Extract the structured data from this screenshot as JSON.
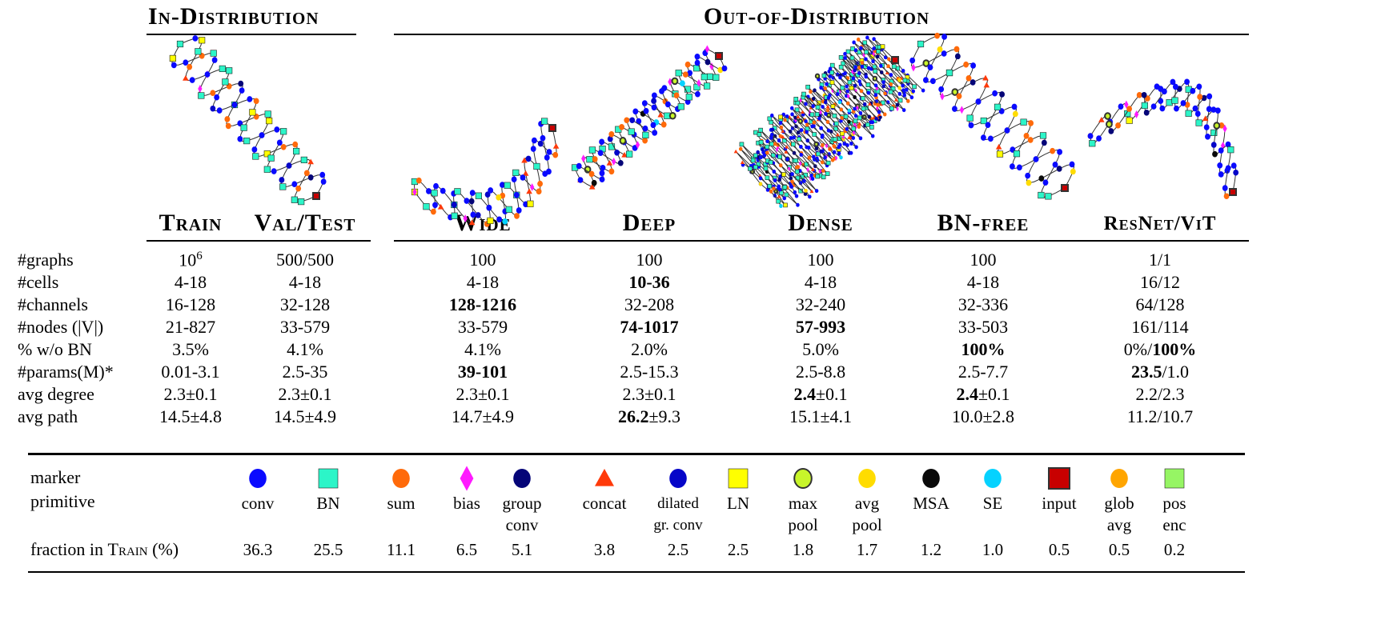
{
  "groups": {
    "in": "In-Distribution",
    "out": "Out-of-Distribution"
  },
  "columns": [
    "Train",
    "Val/Test",
    "Wide",
    "Deep",
    "Dense",
    "BN-free",
    "ResNet/ViT"
  ],
  "rows": [
    {
      "label": "#graphs",
      "cells": [
        {
          "t": "10",
          "sup": "6"
        },
        {
          "t": "500/500"
        },
        {
          "t": "100"
        },
        {
          "t": "100"
        },
        {
          "t": "100"
        },
        {
          "t": "100"
        },
        {
          "t": "1/1"
        }
      ]
    },
    {
      "label": "#cells",
      "cells": [
        {
          "t": "4-18"
        },
        {
          "t": "4-18"
        },
        {
          "t": "4-18"
        },
        {
          "t": "10-36",
          "b": true
        },
        {
          "t": "4-18"
        },
        {
          "t": "4-18"
        },
        {
          "t": "16/12"
        }
      ]
    },
    {
      "label": "#channels",
      "cells": [
        {
          "t": "16-128"
        },
        {
          "t": "32-128"
        },
        {
          "t": "128-1216",
          "b": true
        },
        {
          "t": "32-208"
        },
        {
          "t": "32-240"
        },
        {
          "t": "32-336"
        },
        {
          "t": "64/128"
        }
      ]
    },
    {
      "label": "#nodes (|V|)",
      "cells": [
        {
          "t": "21-827"
        },
        {
          "t": "33-579"
        },
        {
          "t": "33-579"
        },
        {
          "t": "74-1017",
          "b": true
        },
        {
          "t": "57-993",
          "b": true
        },
        {
          "t": "33-503"
        },
        {
          "t": "161/114"
        }
      ]
    },
    {
      "label": "% w/o BN",
      "cells": [
        {
          "t": "3.5%"
        },
        {
          "t": "4.1%"
        },
        {
          "t": "4.1%"
        },
        {
          "t": "2.0%"
        },
        {
          "t": "5.0%"
        },
        {
          "t": "100%",
          "b": true
        },
        {
          "t": "0%/",
          "bt": "100%"
        }
      ]
    },
    {
      "label": "#params(M)*",
      "cells": [
        {
          "t": "0.01-3.1"
        },
        {
          "t": "2.5-35"
        },
        {
          "t": "39-101",
          "b": true
        },
        {
          "t": "2.5-15.3"
        },
        {
          "t": "2.5-8.8"
        },
        {
          "t": "2.5-7.7"
        },
        {
          "bp": "23.5",
          "t": "/1.0"
        }
      ]
    },
    {
      "label": "avg degree",
      "cells": [
        {
          "t": "2.3±0.1"
        },
        {
          "t": "2.3±0.1"
        },
        {
          "t": "2.3±0.1"
        },
        {
          "t": "2.3±0.1"
        },
        {
          "bp": "2.4",
          "t": "±0.1"
        },
        {
          "bp": "2.4",
          "t": "±0.1"
        },
        {
          "t": "2.2/2.3"
        }
      ]
    },
    {
      "label": "avg path",
      "cells": [
        {
          "t": "14.5±4.8"
        },
        {
          "t": "14.5±4.9"
        },
        {
          "t": "14.7±4.9"
        },
        {
          "bp": "26.2",
          "t": "±9.3"
        },
        {
          "t": "15.1±4.1"
        },
        {
          "t": "10.0±2.8"
        },
        {
          "t": "11.2/10.7"
        }
      ]
    }
  ],
  "legend": {
    "marker_label": "marker",
    "primitive_label": "primitive",
    "fraction_label": "fraction in ",
    "fraction_sc": "Train",
    "fraction_unit": " (%)",
    "items": [
      {
        "name": "conv",
        "l2": "",
        "shape": "circle",
        "color": "#0a0aff",
        "frac": "36.3"
      },
      {
        "name": "BN",
        "l2": "",
        "shape": "square",
        "color": "#2cf5c8",
        "frac": "25.5"
      },
      {
        "name": "sum",
        "l2": "",
        "shape": "circle",
        "color": "#ff6a0a",
        "frac": "11.1"
      },
      {
        "name": "bias",
        "l2": "",
        "shape": "diamond",
        "color": "#ff1aff",
        "frac": "6.5"
      },
      {
        "name": "group",
        "l2": "conv",
        "shape": "circle",
        "color": "#050578",
        "frac": "5.1"
      },
      {
        "name": "concat",
        "l2": "",
        "shape": "triangle",
        "color": "#ff3a0a",
        "frac": "3.8"
      },
      {
        "name": "dilated",
        "l2": "gr. conv",
        "shape": "circle",
        "color": "#0505c8",
        "frac": "2.5"
      },
      {
        "name": "LN",
        "l2": "",
        "shape": "square",
        "color": "#ffff00",
        "frac": "2.5"
      },
      {
        "name": "max",
        "l2": "pool",
        "shape": "circle-outline",
        "color": "#c8f52a",
        "frac": "1.8"
      },
      {
        "name": "avg",
        "l2": "pool",
        "shape": "circle",
        "color": "#ffdc00",
        "frac": "1.7"
      },
      {
        "name": "MSA",
        "l2": "",
        "shape": "circle",
        "color": "#0a0a0a",
        "frac": "1.2"
      },
      {
        "name": "SE",
        "l2": "",
        "shape": "circle",
        "color": "#05d2ff",
        "frac": "1.0"
      },
      {
        "name": "input",
        "l2": "",
        "shape": "square-outline",
        "color": "#c80000",
        "frac": "0.5"
      },
      {
        "name": "glob",
        "l2": "avg",
        "shape": "circle",
        "color": "#ffa500",
        "frac": "0.5"
      },
      {
        "name": "pos",
        "l2": "enc",
        "shape": "square",
        "color": "#96f564",
        "frac": "0.2"
      }
    ]
  }
}
